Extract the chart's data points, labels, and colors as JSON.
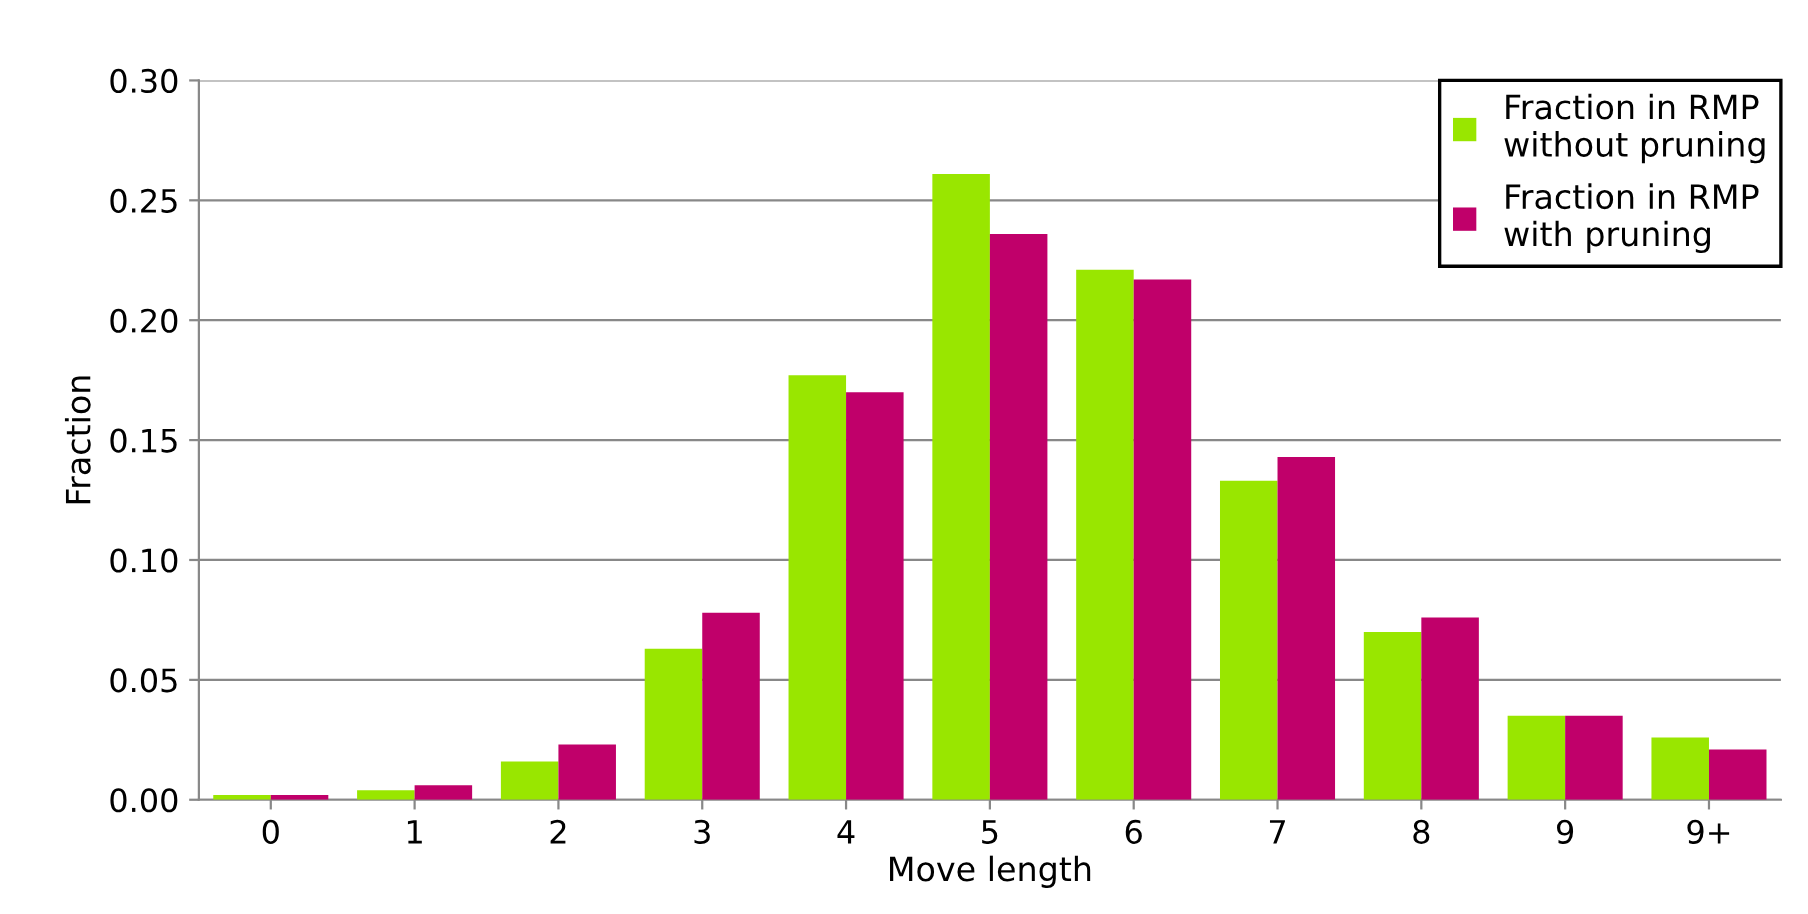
{
  "chart_data": {
    "type": "bar",
    "xlabel": "Move length",
    "ylabel": "Fraction",
    "categories": [
      "0",
      "1",
      "2",
      "3",
      "4",
      "5",
      "6",
      "7",
      "8",
      "9",
      "9+"
    ],
    "series": [
      {
        "name": "Fraction in RMP\nwithout pruning",
        "color": "#99e600",
        "values": [
          0.002,
          0.004,
          0.016,
          0.063,
          0.177,
          0.261,
          0.221,
          0.133,
          0.07,
          0.035,
          0.026
        ]
      },
      {
        "name": "Fraction in RMP\nwith pruning",
        "color": "#c0006a",
        "values": [
          0.002,
          0.006,
          0.023,
          0.078,
          0.17,
          0.236,
          0.217,
          0.143,
          0.076,
          0.035,
          0.021
        ]
      }
    ],
    "ylim": [
      0,
      0.3
    ],
    "yticks": [
      {
        "value": 0,
        "label": "0.00"
      },
      {
        "value": 0.05,
        "label": "0.05"
      },
      {
        "value": 0.1,
        "label": "0.10"
      },
      {
        "value": 0.15,
        "label": "0.15"
      },
      {
        "value": 0.2,
        "label": "0.20"
      },
      {
        "value": 0.25,
        "label": "0.25"
      },
      {
        "value": 0.3,
        "label": "0.30"
      }
    ],
    "grid": "y",
    "legend": "top right"
  }
}
